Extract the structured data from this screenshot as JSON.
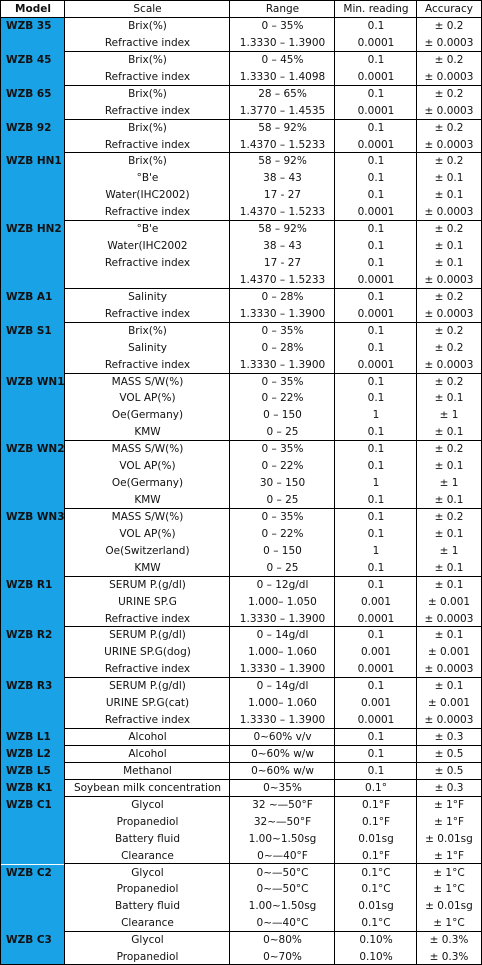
{
  "table": {
    "header": [
      "Model",
      "Scale",
      "Range",
      "Min. reading",
      "Accuracy"
    ],
    "groups": [
      {
        "model": "WZB 35",
        "rows": [
          [
            "Brix(%)",
            "0 – 35%",
            "0.1",
            "± 0.2"
          ],
          [
            "Refractive index",
            "1.3330 – 1.3900",
            "0.0001",
            "± 0.0003"
          ]
        ]
      },
      {
        "model": "WZB 45",
        "rows": [
          [
            "Brix(%)",
            "0 – 45%",
            "0.1",
            "± 0.2"
          ],
          [
            "Refractive index",
            "1.3330 – 1.4098",
            "0.0001",
            "± 0.0003"
          ]
        ]
      },
      {
        "model": "WZB 65",
        "rows": [
          [
            "Brix(%)",
            "28 – 65%",
            "0.1",
            "± 0.2"
          ],
          [
            "Refractive index",
            "1.3770 – 1.4535",
            "0.0001",
            "± 0.0003"
          ]
        ]
      },
      {
        "model": "WZB 92",
        "rows": [
          [
            "Brix(%)",
            "58 – 92%",
            "0.1",
            "± 0.2"
          ],
          [
            "Refractive index",
            "1.4370 – 1.5233",
            "0.0001",
            "± 0.0003"
          ]
        ]
      },
      {
        "model": "WZB HN1",
        "rows": [
          [
            "Brix(%)",
            "58 – 92%",
            "0.1",
            "± 0.2"
          ],
          [
            "°B'e",
            "38 – 43",
            "0.1",
            "± 0.1"
          ],
          [
            "Water(IHC2002)",
            "17 - 27",
            "0.1",
            "± 0.1"
          ],
          [
            "Refractive index",
            "1.4370 – 1.5233",
            "0.0001",
            "± 0.0003"
          ]
        ]
      },
      {
        "model": "WZB HN2",
        "rows": [
          [
            "°B'e",
            "58 – 92%",
            "0.1",
            "± 0.2"
          ],
          [
            "Water(IHC2002",
            "38 – 43",
            "0.1",
            "± 0.1"
          ],
          [
            "Refractive index",
            "17 - 27",
            "0.1",
            "± 0.1"
          ],
          [
            null,
            "1.4370 – 1.5233",
            "0.0001",
            "± 0.0003"
          ]
        ]
      },
      {
        "model": "WZB A1",
        "rows": [
          [
            "Salinity",
            "0 – 28%",
            "0.1",
            "± 0.2"
          ],
          [
            "Refractive index",
            "1.3330 – 1.3900",
            "0.0001",
            "± 0.0003"
          ]
        ]
      },
      {
        "model": "WZB S1",
        "rows": [
          [
            "Brix(%)",
            "0 – 35%",
            "0.1",
            "± 0.2"
          ],
          [
            "Salinity",
            "0 – 28%",
            "0.1",
            "± 0.2"
          ],
          [
            "Refractive index",
            "1.3330 – 1.3900",
            "0.0001",
            "± 0.0003"
          ]
        ]
      },
      {
        "model": "WZB WN1",
        "rows": [
          [
            "MASS S/W(%)",
            "0 – 35%",
            "0.1",
            "± 0.2"
          ],
          [
            "VOL AP(%)",
            "0 – 22%",
            "0.1",
            "± 0.1"
          ],
          [
            "Oe(Germany)",
            "0 – 150",
            "1",
            "± 1"
          ],
          [
            "KMW",
            "0 – 25",
            "0.1",
            "± 0.1"
          ]
        ]
      },
      {
        "model": "WZB WN2",
        "rows": [
          [
            "MASS S/W(%)",
            "0 – 35%",
            "0.1",
            "± 0.2"
          ],
          [
            "VOL AP(%)",
            "0 – 22%",
            "0.1",
            "± 0.1"
          ],
          [
            "Oe(Germany)",
            "30 – 150",
            "1",
            "± 1"
          ],
          [
            "KMW",
            "0 – 25",
            "0.1",
            "± 0.1"
          ]
        ]
      },
      {
        "model": "WZB WN3",
        "rows": [
          [
            "MASS S/W(%)",
            "0 – 35%",
            "0.1",
            "± 0.2"
          ],
          [
            "VOL AP(%)",
            "0 – 22%",
            "0.1",
            "± 0.1"
          ],
          [
            "Oe(Switzerland)",
            "0 – 150",
            "1",
            "± 1"
          ],
          [
            "KMW",
            "0 – 25",
            "0.1",
            "± 0.1"
          ]
        ]
      },
      {
        "model": "WZB R1",
        "rows": [
          [
            "SERUM P.(g/dl)",
            "0 – 12g/dl",
            "0.1",
            "± 0.1"
          ],
          [
            "URINE SP.G",
            "1.000– 1.050",
            "0.001",
            "± 0.001"
          ],
          [
            "Refractive index",
            "1.3330 – 1.3900",
            "0.0001",
            "± 0.0003"
          ]
        ]
      },
      {
        "model": "WZB R2",
        "rows": [
          [
            "SERUM P.(g/dl)",
            "0 – 14g/dl",
            "0.1",
            "± 0.1"
          ],
          [
            "URINE SP.G(dog)",
            "1.000– 1.060",
            "0.001",
            "± 0.001"
          ],
          [
            "Refractive index",
            "1.3330 – 1.3900",
            "0.0001",
            "± 0.0003"
          ]
        ]
      },
      {
        "model": "WZB R3",
        "rows": [
          [
            "SERUM P.(g/dl)",
            "0 – 14g/dl",
            "0.1",
            "± 0.1"
          ],
          [
            "URINE SP.G(cat)",
            "1.000– 1.060",
            "0.001",
            "± 0.001"
          ],
          [
            "Refractive index",
            "1.3330 – 1.3900",
            "0.0001",
            "± 0.0003"
          ]
        ]
      },
      {
        "model": "WZB L1",
        "rows": [
          [
            "Alcohol",
            "0~60% v/v",
            "0.1",
            "± 0.3"
          ]
        ]
      },
      {
        "model": "WZB L2",
        "rows": [
          [
            "Alcohol",
            "0~60% w/w",
            "0.1",
            "± 0.5"
          ]
        ]
      },
      {
        "model": "WZB L5",
        "rows": [
          [
            "Methanol",
            "0~60% w/w",
            "0.1",
            "± 0.5"
          ]
        ]
      },
      {
        "model": "WZB K1",
        "rows": [
          [
            "Soybean milk concentration",
            "0~35%",
            "0.1°",
            "± 0.3"
          ]
        ]
      },
      {
        "model": "WZB C1",
        "rows": [
          [
            "Glycol",
            "32 ~—50°F",
            "0.1°F",
            "± 1°F"
          ],
          [
            "Propanediol",
            "32~—50°F",
            "0.1°F",
            "± 1°F"
          ],
          [
            "Battery fluid",
            "1.00~1.50sg",
            "0.01sg",
            "± 0.01sg"
          ],
          [
            "Clearance",
            "0~—40°F",
            "0.1°F",
            "± 1°F"
          ]
        ]
      },
      {
        "model": "WZB C2",
        "rows": [
          [
            "Glycol",
            "0~—50°C",
            "0.1°C",
            "± 1°C"
          ],
          [
            "Propanediol",
            "0~—50°C",
            "0.1°C",
            "± 1°C"
          ],
          [
            "Battery fluid",
            "1.00~1.50sg",
            "0.01sg",
            "± 0.01sg"
          ],
          [
            "Clearance",
            "0~—40°C",
            "0.1°C",
            "± 1°C"
          ]
        ]
      },
      {
        "model": "WZB C3",
        "rows": [
          [
            "Glycol",
            "0~80%",
            "0.10%",
            "± 0.3%"
          ],
          [
            "Propanediol",
            "0~70%",
            "0.10%",
            "± 0.3%"
          ]
        ]
      }
    ]
  }
}
